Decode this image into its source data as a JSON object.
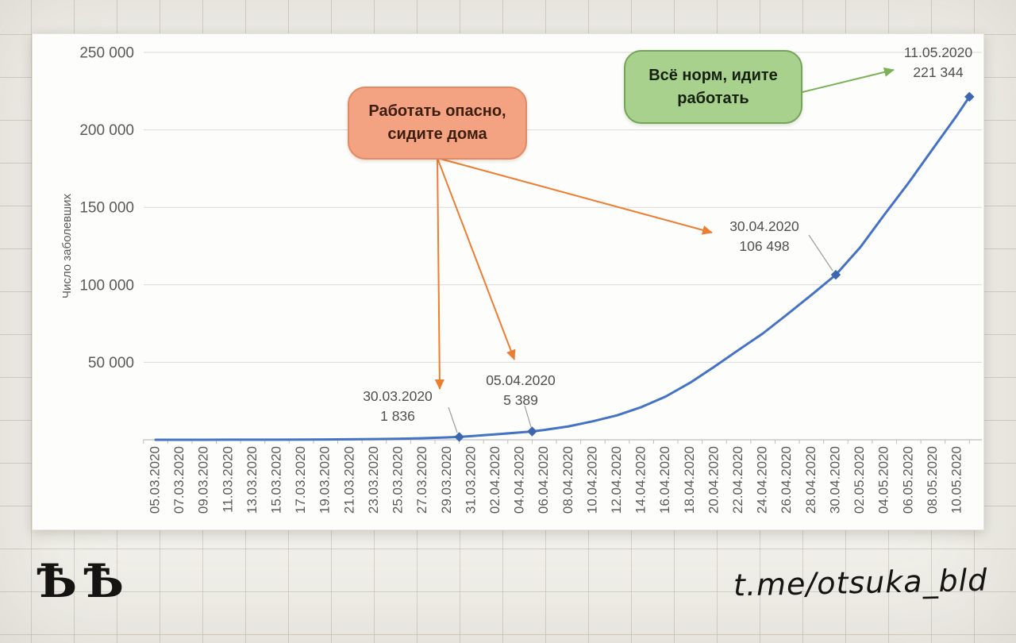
{
  "page": {
    "watermark_left": "ѢѢ",
    "watermark_right": "t.me/otsuka_bld"
  },
  "chart_data": {
    "type": "line",
    "title": "",
    "xlabel": "",
    "ylabel": "Число заболевших",
    "ylim": [
      0,
      250000
    ],
    "grid": true,
    "legend": false,
    "y_ticks": [
      {
        "value": 250000,
        "label": "250 000"
      },
      {
        "value": 200000,
        "label": "200 000"
      },
      {
        "value": 150000,
        "label": "150 000"
      },
      {
        "value": 100000,
        "label": "100 000"
      },
      {
        "value": 50000,
        "label": "50 000"
      }
    ],
    "x_tick_dates": [
      "05.03.2020",
      "07.03.2020",
      "09.03.2020",
      "11.03.2020",
      "13.03.2020",
      "15.03.2020",
      "17.03.2020",
      "19.03.2020",
      "21.03.2020",
      "23.03.2020",
      "25.03.2020",
      "27.03.2020",
      "29.03.2020",
      "31.03.2020",
      "02.04.2020",
      "04.04.2020",
      "06.04.2020",
      "08.04.2020",
      "10.04.2020",
      "12.04.2020",
      "14.04.2020",
      "16.04.2020",
      "18.04.2020",
      "20.04.2020",
      "22.04.2020",
      "24.04.2020",
      "26.04.2020",
      "28.04.2020",
      "30.04.2020",
      "02.05.2020",
      "04.05.2020",
      "06.05.2020",
      "08.05.2020",
      "10.05.2020"
    ],
    "x_day0_date": "05.03.2020",
    "series": [
      {
        "name": "Число заболевших",
        "color": "#4472c4",
        "points": [
          [
            0,
            4
          ],
          [
            2,
            13
          ],
          [
            4,
            17
          ],
          [
            6,
            28
          ],
          [
            8,
            45
          ],
          [
            10,
            63
          ],
          [
            12,
            114
          ],
          [
            14,
            199
          ],
          [
            16,
            306
          ],
          [
            18,
            438
          ],
          [
            20,
            658
          ],
          [
            22,
            1036
          ],
          [
            24,
            1534
          ],
          [
            25,
            1836
          ],
          [
            26,
            2337
          ],
          [
            28,
            3548
          ],
          [
            30,
            4731
          ],
          [
            31,
            5389
          ],
          [
            32,
            6343
          ],
          [
            34,
            8672
          ],
          [
            36,
            11917
          ],
          [
            38,
            15770
          ],
          [
            40,
            21102
          ],
          [
            42,
            27938
          ],
          [
            44,
            36793
          ],
          [
            46,
            47121
          ],
          [
            48,
            57999
          ],
          [
            50,
            68622
          ],
          [
            52,
            80949
          ],
          [
            54,
            93558
          ],
          [
            56,
            106498
          ],
          [
            58,
            124054
          ],
          [
            60,
            145268
          ],
          [
            62,
            165929
          ],
          [
            64,
            187859
          ],
          [
            66,
            209688
          ],
          [
            67,
            221344
          ]
        ]
      }
    ],
    "annotations": [
      {
        "date": "30.03.2020",
        "label": "1 836",
        "value": 1836,
        "day": 25
      },
      {
        "date": "05.04.2020",
        "label": "5 389",
        "value": 5389,
        "day": 31
      },
      {
        "date": "30.04.2020",
        "label": "106 498",
        "value": 106498,
        "day": 56
      },
      {
        "date": "11.05.2020",
        "label": "221 344",
        "value": 221344,
        "day": 67
      }
    ],
    "callouts": {
      "danger": {
        "line1": "Работать опасно,",
        "line2": "сидите дома",
        "fill": "#f3a282",
        "border": "#e08b61",
        "text_color": "#3c1d0e"
      },
      "ok": {
        "line1": "Всё норм, идите",
        "line2": "работать",
        "fill": "#a9d18e",
        "border": "#74a557",
        "text_color": "#15200d"
      }
    },
    "colors": {
      "line": "#4472c4",
      "marker": "#3d66b0",
      "grid": "#d9d9d9",
      "axis": "#bfbfbf",
      "tick_text": "#595959",
      "annotation_text": "#4f4f4f",
      "leader": "#9e9e9e",
      "orange_arrow": "#ed7d31",
      "green_arrow": "#7ab257"
    }
  }
}
